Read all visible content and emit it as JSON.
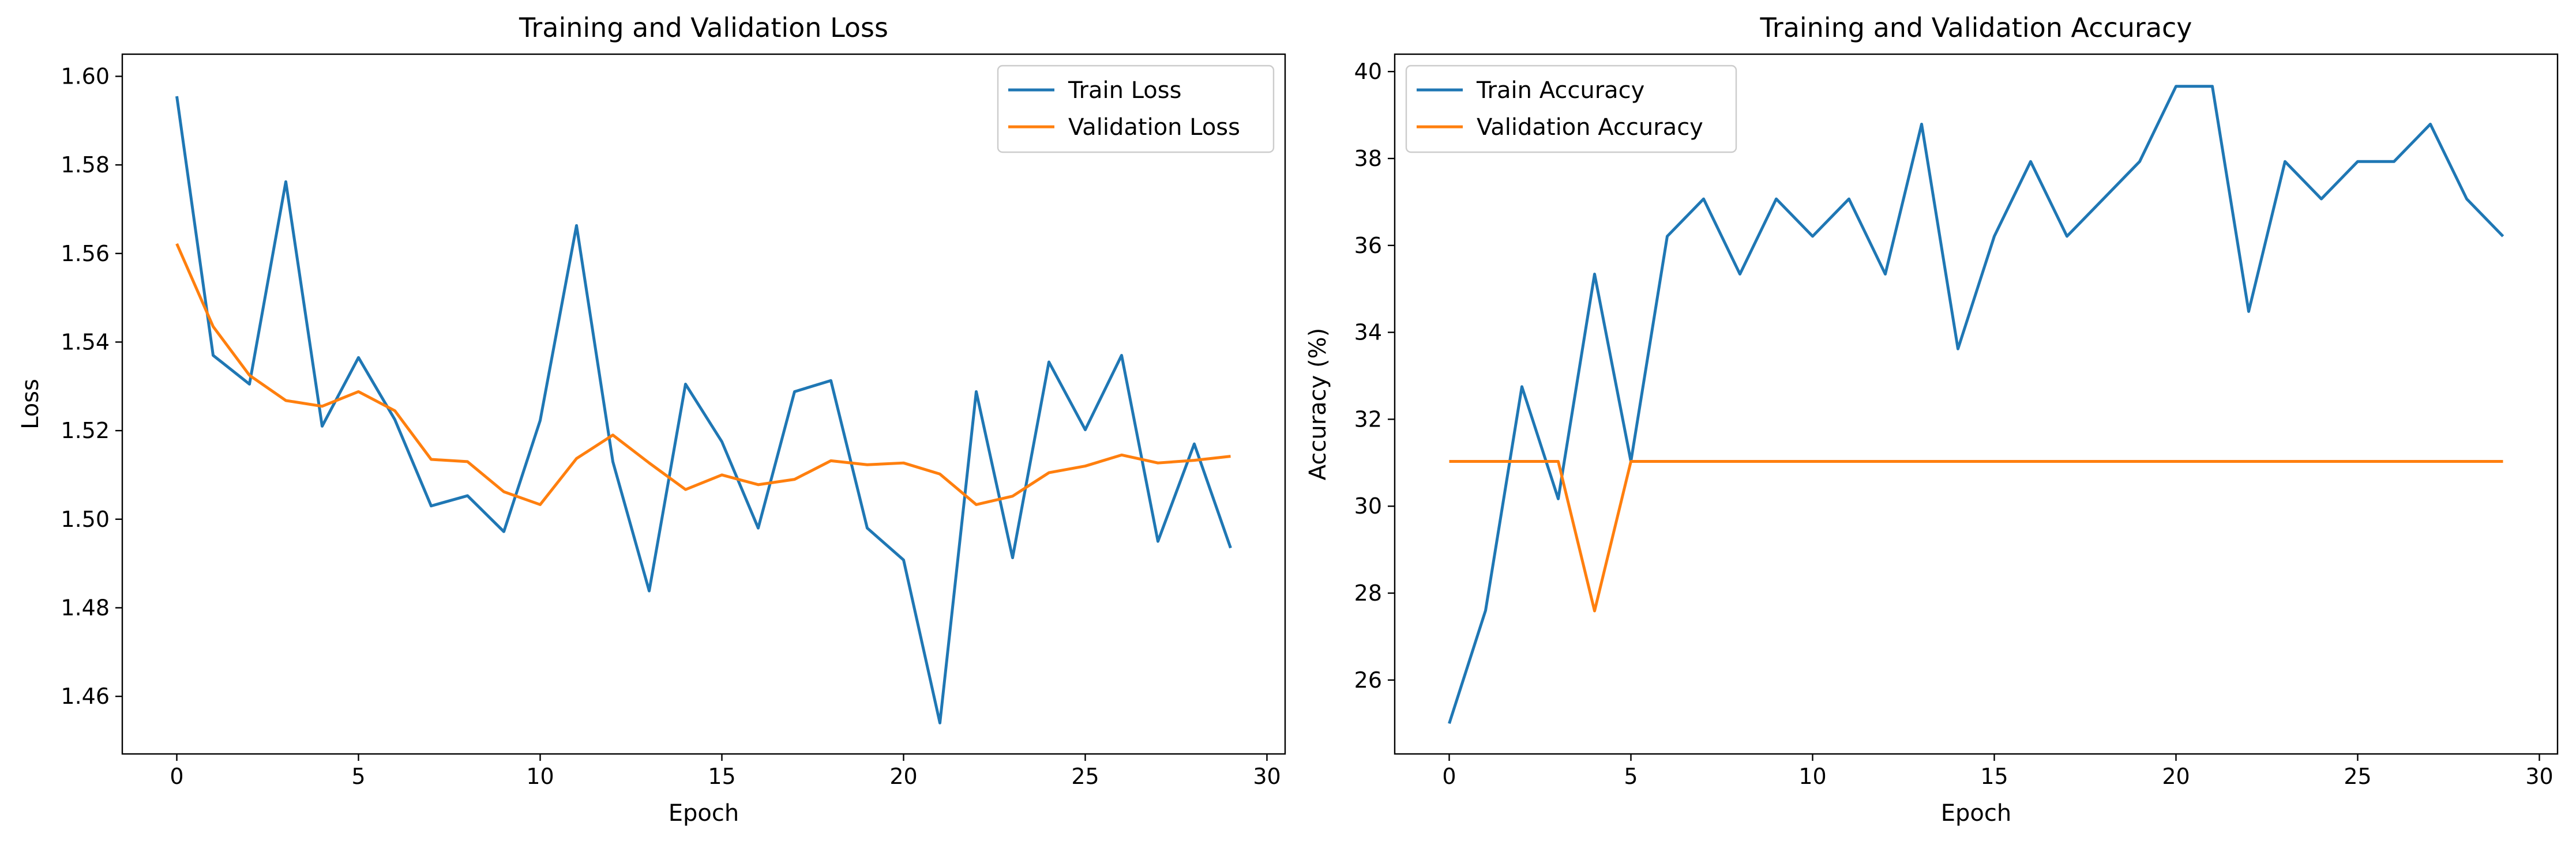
{
  "chart_data": [
    {
      "type": "line",
      "title": "Training and Validation Loss",
      "xlabel": "Epoch",
      "ylabel": "Loss",
      "xlim": [
        -1.5,
        30.5
      ],
      "ylim": [
        1.447,
        1.605
      ],
      "xticks": [
        0,
        5,
        10,
        15,
        20,
        25,
        30
      ],
      "yticks": [
        1.46,
        1.48,
        1.5,
        1.52,
        1.54,
        1.56,
        1.58,
        1.6
      ],
      "ytick_decimals": 2,
      "grid": false,
      "legend_position": "upper-right",
      "x": [
        0,
        1,
        2,
        3,
        4,
        5,
        6,
        7,
        8,
        9,
        10,
        11,
        12,
        13,
        14,
        15,
        16,
        17,
        18,
        19,
        20,
        21,
        22,
        23,
        24,
        25,
        26,
        27,
        28,
        29
      ],
      "series": [
        {
          "name": "Train Loss",
          "color": "#1f77b4",
          "values": [
            1.5955,
            1.537,
            1.5305,
            1.5762,
            1.521,
            1.5365,
            1.5225,
            1.503,
            1.5053,
            1.4972,
            1.5223,
            1.5663,
            1.513,
            1.4838,
            1.5305,
            1.5175,
            1.498,
            1.5288,
            1.5313,
            1.498,
            1.4908,
            1.454,
            1.5288,
            1.4913,
            1.5355,
            1.5202,
            1.537,
            1.495,
            1.517,
            1.4935
          ]
        },
        {
          "name": "Validation Loss",
          "color": "#ff7f0e",
          "values": [
            1.5622,
            1.5435,
            1.5325,
            1.5268,
            1.5255,
            1.5288,
            1.5245,
            1.5135,
            1.513,
            1.5062,
            1.5033,
            1.5137,
            1.519,
            1.5127,
            1.5067,
            1.51,
            1.5078,
            1.509,
            1.5132,
            1.5123,
            1.5127,
            1.5102,
            1.5033,
            1.5052,
            1.5105,
            1.512,
            1.5145,
            1.5127,
            1.5133,
            1.5142
          ]
        }
      ]
    },
    {
      "type": "line",
      "title": "Training and Validation Accuracy",
      "xlabel": "Epoch",
      "ylabel": "Accuracy (%)",
      "xlim": [
        -1.5,
        30.5
      ],
      "ylim": [
        24.3,
        40.4
      ],
      "xticks": [
        0,
        5,
        10,
        15,
        20,
        25,
        30
      ],
      "yticks": [
        26,
        28,
        30,
        32,
        34,
        36,
        38,
        40
      ],
      "ytick_decimals": 0,
      "grid": false,
      "legend_position": "upper-left",
      "x": [
        0,
        1,
        2,
        3,
        4,
        5,
        6,
        7,
        8,
        9,
        10,
        11,
        12,
        13,
        14,
        15,
        16,
        17,
        18,
        19,
        20,
        21,
        22,
        23,
        24,
        25,
        26,
        27,
        28,
        29
      ],
      "series": [
        {
          "name": "Train Accuracy",
          "color": "#1f77b4",
          "values": [
            25.0,
            27.6,
            32.75,
            30.17,
            35.34,
            31.03,
            36.21,
            37.07,
            35.34,
            37.07,
            36.21,
            37.07,
            35.34,
            38.79,
            33.62,
            36.21,
            37.93,
            36.21,
            37.07,
            37.93,
            39.66,
            39.66,
            34.48,
            37.93,
            37.07,
            37.93,
            37.93,
            38.79,
            37.07,
            36.21
          ]
        },
        {
          "name": "Validation Accuracy",
          "color": "#ff7f0e",
          "values": [
            31.03,
            31.03,
            31.03,
            31.03,
            27.59,
            31.03,
            31.03,
            31.03,
            31.03,
            31.03,
            31.03,
            31.03,
            31.03,
            31.03,
            31.03,
            31.03,
            31.03,
            31.03,
            31.03,
            31.03,
            31.03,
            31.03,
            31.03,
            31.03,
            31.03,
            31.03,
            31.03,
            31.03,
            31.03,
            31.03
          ]
        }
      ]
    }
  ]
}
